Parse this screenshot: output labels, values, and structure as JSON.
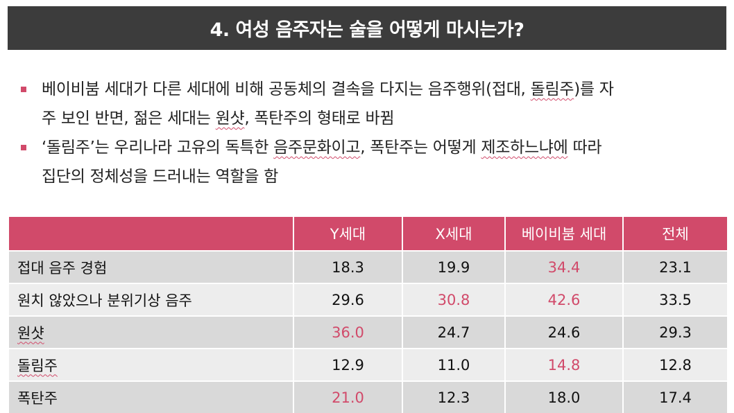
{
  "title": "4. 여성 음주자는 술을 어떻게 마시는가?",
  "bullets": [
    {
      "parts": [
        "베이비붐 세대가 다른 세대에 비해 공동체의 결속을 다지는 음주행위(접대, ",
        "돌림주",
        ")를 자",
        "주 보인 반면, 젊은 세대는 ",
        "원샷",
        ", 폭탄주의 형태로 바뀜"
      ]
    },
    {
      "parts": [
        "‘돌림주’는 우리나라 고유의 독특한 ",
        "음주문화이고",
        ", 폭탄주는 어떻게 ",
        "제조하느냐에",
        " 따라",
        "집단의 정체성을 드러내는 역할을 함"
      ]
    }
  ],
  "table": {
    "headers": [
      "",
      "Y세대",
      "X세대",
      "베이비붐 세대",
      "전체"
    ],
    "rows": [
      {
        "label": "접대 음주 경험",
        "values": [
          "18.3",
          "19.9",
          "34.4",
          "23.1"
        ]
      },
      {
        "label": "원치 않았으나 분위기상 음주",
        "values": [
          "29.6",
          "30.8",
          "42.6",
          "33.5"
        ]
      },
      {
        "label": "원샷",
        "values": [
          "36.0",
          "24.7",
          "24.6",
          "29.3"
        ]
      },
      {
        "label": "돌림주",
        "values": [
          "12.9",
          "11.0",
          "14.8",
          "12.8"
        ]
      },
      {
        "label": "폭탄주",
        "values": [
          "21.0",
          "12.3",
          "18.0",
          "17.4"
        ]
      }
    ]
  },
  "colors": {
    "accent": "#d14a6a",
    "title_bg": "#3c3c3c"
  }
}
